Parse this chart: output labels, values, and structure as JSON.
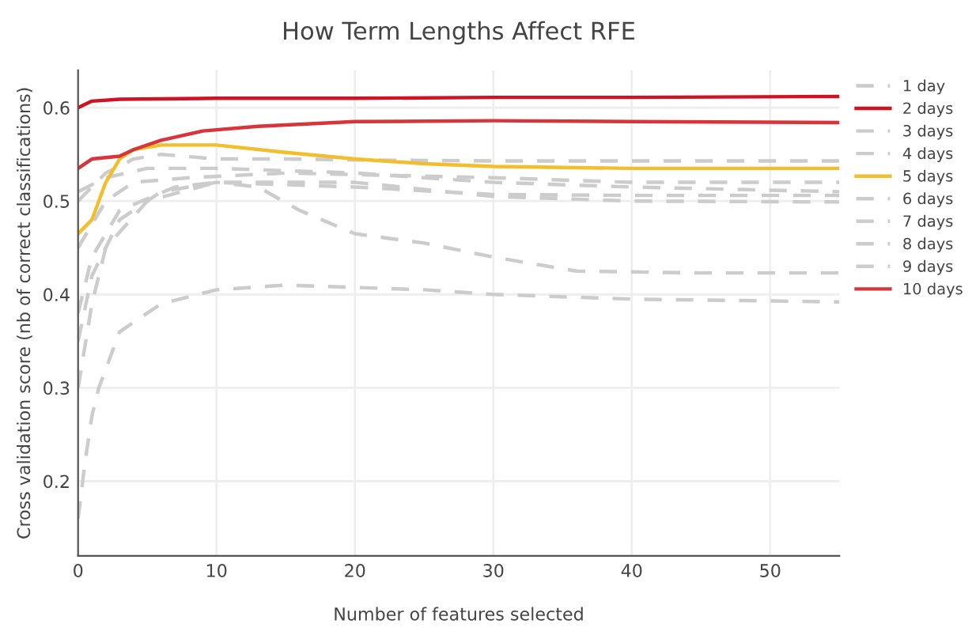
{
  "chart_data": {
    "type": "line",
    "title": "How Term Lengths Affect RFE",
    "xlabel": "Number of features selected",
    "ylabel": "Cross validation score (nb of correct classifications)",
    "xlim": [
      0,
      55
    ],
    "xticks": [
      0,
      10,
      20,
      30,
      40,
      50
    ],
    "ylim": [
      0.12,
      0.64
    ],
    "yticks": [
      0.2,
      0.3,
      0.4,
      0.5,
      0.6
    ],
    "grid": true,
    "legend": "right",
    "marker": "none",
    "series": [
      {
        "name": "1 day",
        "color": "#cccccc",
        "line_style": "dashed",
        "x": [
          0,
          2,
          4,
          6,
          10,
          15,
          20,
          30,
          40,
          55
        ],
        "values": [
          0.5,
          0.53,
          0.545,
          0.55,
          0.545,
          0.545,
          0.544,
          0.543,
          0.543,
          0.543
        ]
      },
      {
        "name": "2 days",
        "color": "#cc1424",
        "line_style": "solid",
        "x": [
          0,
          1,
          3,
          10,
          20,
          30,
          40,
          55
        ],
        "values": [
          0.6,
          0.607,
          0.609,
          0.61,
          0.61,
          0.611,
          0.611,
          0.612
        ]
      },
      {
        "name": "3 days",
        "color": "#cccccc",
        "line_style": "dashed",
        "x": [
          0,
          2,
          5,
          10,
          20,
          30,
          40,
          55
        ],
        "values": [
          0.51,
          0.525,
          0.535,
          0.535,
          0.53,
          0.52,
          0.515,
          0.51
        ]
      },
      {
        "name": "4 days",
        "color": "#cccccc",
        "line_style": "dashed",
        "x": [
          0,
          2,
          4,
          8,
          15,
          30,
          40,
          55
        ],
        "values": [
          0.45,
          0.5,
          0.52,
          0.525,
          0.53,
          0.525,
          0.52,
          0.52
        ]
      },
      {
        "name": "5 days",
        "color": "#f2be2c",
        "line_style": "solid",
        "x": [
          0,
          1,
          2,
          3,
          4,
          6,
          10,
          15,
          20,
          25,
          30,
          40,
          55
        ],
        "values": [
          0.465,
          0.48,
          0.52,
          0.545,
          0.555,
          0.56,
          0.56,
          0.552,
          0.545,
          0.54,
          0.537,
          0.535,
          0.535
        ]
      },
      {
        "name": "6 days",
        "color": "#cccccc",
        "line_style": "dashed",
        "x": [
          0,
          1,
          3,
          7,
          10,
          20,
          30,
          40,
          55
        ],
        "values": [
          0.38,
          0.44,
          0.49,
          0.515,
          0.52,
          0.515,
          0.507,
          0.506,
          0.506
        ]
      },
      {
        "name": "7 days",
        "color": "#cccccc",
        "line_style": "dashed",
        "x": [
          0,
          1,
          3,
          6,
          10,
          13,
          16,
          20,
          25,
          30,
          36,
          45,
          55
        ],
        "values": [
          0.35,
          0.42,
          0.48,
          0.51,
          0.52,
          0.515,
          0.49,
          0.465,
          0.455,
          0.44,
          0.425,
          0.423,
          0.423
        ]
      },
      {
        "name": "8 days",
        "color": "#cccccc",
        "line_style": "dashed",
        "x": [
          0,
          1,
          2,
          5,
          10,
          20,
          30,
          40,
          55
        ],
        "values": [
          0.3,
          0.39,
          0.45,
          0.5,
          0.52,
          0.52,
          0.505,
          0.5,
          0.499
        ]
      },
      {
        "name": "9 days",
        "color": "#cccccc",
        "line_style": "dashed",
        "x": [
          0,
          0.5,
          1,
          1.5,
          3,
          6,
          10,
          15,
          25,
          30,
          40,
          55
        ],
        "values": [
          0.16,
          0.22,
          0.27,
          0.3,
          0.36,
          0.39,
          0.405,
          0.41,
          0.405,
          0.4,
          0.395,
          0.392
        ]
      },
      {
        "name": "10 days",
        "color": "#d8343c",
        "line_style": "solid",
        "x": [
          0,
          1,
          3,
          4,
          6,
          9,
          13,
          20,
          30,
          40,
          55
        ],
        "values": [
          0.535,
          0.545,
          0.548,
          0.555,
          0.565,
          0.575,
          0.58,
          0.585,
          0.586,
          0.585,
          0.584
        ]
      }
    ]
  }
}
